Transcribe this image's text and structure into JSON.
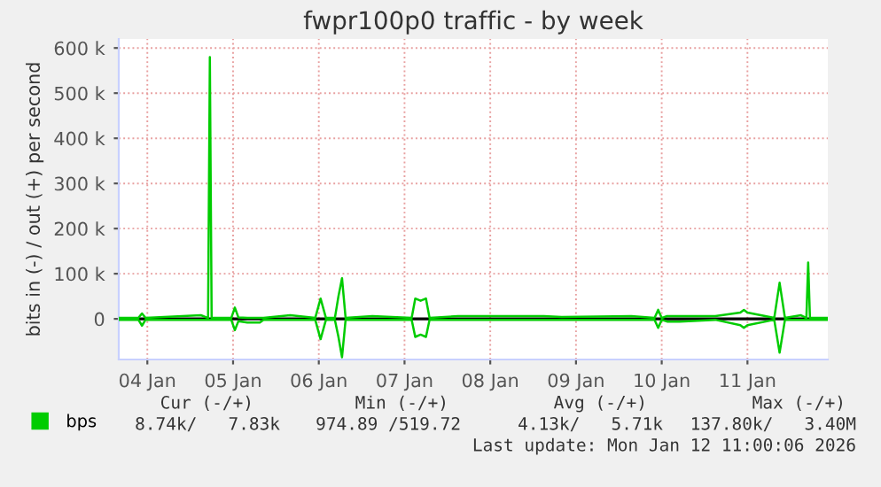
{
  "chart_data": {
    "type": "line",
    "title": "fwpr100p0 traffic - by week",
    "ylabel": "bits in (-) / out (+) per second",
    "x": [
      "2026-01-04T04:00",
      "2026-01-04T09:30",
      "2026-01-04T10:30",
      "2026-01-04T11:30",
      "2026-01-05T03:00",
      "2026-01-05T05:00",
      "2026-01-05T05:30",
      "2026-01-05T06:00",
      "2026-01-05T11:30",
      "2026-01-05T12:30",
      "2026-01-05T13:30",
      "2026-01-05T16:00",
      "2026-01-05T19:30",
      "2026-01-05T20:30",
      "2026-01-06T04:00",
      "2026-01-06T11:00",
      "2026-01-06T12:30",
      "2026-01-06T14:00",
      "2026-01-06T16:30",
      "2026-01-06T17:30",
      "2026-01-06T18:30",
      "2026-01-06T19:30",
      "2026-01-07T03:00",
      "2026-01-07T14:00",
      "2026-01-07T15:00",
      "2026-01-07T16:30",
      "2026-01-07T18:00",
      "2026-01-07T19:00",
      "2026-01-08T03:00",
      "2026-01-09T03:00",
      "2026-01-09T08:00",
      "2026-01-10T03:30",
      "2026-01-10T10:00",
      "2026-01-10T11:00",
      "2026-01-10T12:00",
      "2026-01-10T13:30",
      "2026-01-10T17:00",
      "2026-01-11T03:00",
      "2026-01-11T10:00",
      "2026-01-11T11:00",
      "2026-01-11T12:00",
      "2026-01-11T19:30",
      "2026-01-11T21:00",
      "2026-01-11T22:30",
      "2026-01-12T03:00",
      "2026-01-12T04:30",
      "2026-01-12T05:00",
      "2026-01-12T05:30",
      "2026-01-12T10:30"
    ],
    "series": [
      {
        "name": "bps",
        "color": "#00cc00",
        "values": [
          2000,
          2000,
          12000,
          2000,
          8000,
          2000,
          580000,
          2000,
          2000,
          25000,
          3000,
          2000,
          2000,
          2000,
          8000,
          2000,
          45000,
          2000,
          2000,
          50000,
          90000,
          2000,
          6000,
          2000,
          45000,
          40000,
          45000,
          2000,
          6000,
          6000,
          4000,
          6000,
          2000,
          20000,
          2000,
          6000,
          6000,
          6000,
          14000,
          20000,
          14000,
          2000,
          80000,
          2000,
          8000,
          2000,
          125000,
          2000,
          2000
        ]
      },
      {
        "color": "#00cc00",
        "values": [
          -2000,
          -2000,
          -15000,
          -2000,
          -2000,
          -2000,
          -2000,
          -2000,
          -2000,
          -25000,
          -5000,
          -8000,
          -8000,
          -2000,
          -2000,
          -2000,
          -45000,
          -2000,
          -2000,
          -40000,
          -85000,
          -2000,
          -2000,
          -2000,
          -40000,
          -35000,
          -40000,
          -2000,
          -2000,
          -2000,
          -2000,
          -2000,
          -2000,
          -20000,
          -2000,
          -6000,
          -6000,
          -2000,
          -14000,
          -20000,
          -14000,
          -2000,
          -75000,
          -2000,
          -2000,
          -2000,
          -2000,
          -2000,
          -2000
        ]
      }
    ],
    "xlim": [
      "2026-01-04T04:00",
      "2026-01-12T10:30"
    ],
    "xticks": [
      {
        "value": "2026-01-04T12:00",
        "label": "04 Jan"
      },
      {
        "value": "2026-01-05T12:00",
        "label": "05 Jan"
      },
      {
        "value": "2026-01-06T12:00",
        "label": "06 Jan"
      },
      {
        "value": "2026-01-07T12:00",
        "label": "07 Jan"
      },
      {
        "value": "2026-01-08T12:00",
        "label": "08 Jan"
      },
      {
        "value": "2026-01-09T12:00",
        "label": "09 Jan"
      },
      {
        "value": "2026-01-10T12:00",
        "label": "10 Jan"
      },
      {
        "value": "2026-01-11T12:00",
        "label": "11 Jan"
      }
    ],
    "ylim": [
      -90000,
      620000
    ],
    "yticks": [
      {
        "value": 0,
        "label": "0"
      },
      {
        "value": 100000,
        "label": "100 k"
      },
      {
        "value": 200000,
        "label": "200 k"
      },
      {
        "value": 300000,
        "label": "300 k"
      },
      {
        "value": 400000,
        "label": "400 k"
      },
      {
        "value": 500000,
        "label": "500 k"
      },
      {
        "value": 600000,
        "label": "600 k"
      }
    ],
    "grid": true,
    "legend": "bottom left",
    "ref_lines": [
      {
        "axis": "y",
        "value": 0,
        "color": "#000000"
      }
    ],
    "annotations": [
      "Cur (-/+)",
      "Min (-/+)",
      "Avg (-/+)",
      "Max (-/+)",
      "8.74k/   7.83k",
      "974.89 /519.72",
      "4.13k/   5.71k",
      "137.80k/   3.40M",
      "Last update: Mon Jan 12 11:00:06 2026"
    ]
  }
}
